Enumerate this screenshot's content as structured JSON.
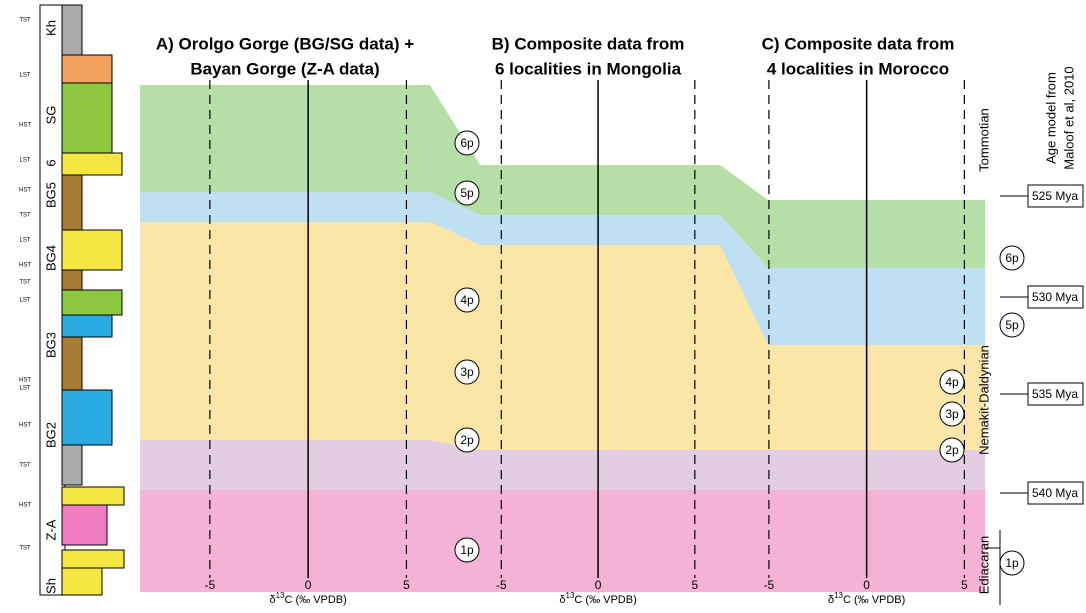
{
  "figure": {
    "panels": [
      {
        "title": [
          "A) Orolgo Gorge (BG/SG data) +",
          "Bayan Gorge (Z-A data)"
        ],
        "xlim": [
          -8.3,
          6.2
        ],
        "xticks": [
          -5,
          0,
          5
        ],
        "zones": [
          "6p",
          "5p",
          "4p",
          "3p",
          "2p",
          "1p"
        ]
      },
      {
        "title": [
          "B) Composite data from",
          "6 localities in Mongolia"
        ],
        "xlim": [
          -6.1,
          6.3
        ],
        "xticks": [
          -5,
          0,
          5
        ],
        "zones": []
      },
      {
        "title": [
          "C) Composite data from",
          "4 localities in Morocco"
        ],
        "xlim": [
          -5.2,
          5.8
        ],
        "xticks": [
          -5,
          0,
          5
        ],
        "zones": [
          "6p",
          "5p",
          "4p",
          "3p",
          "2p",
          "1p"
        ]
      }
    ],
    "xlabel": {
      "symbol": "δ",
      "sup": "13",
      "rest": "C (‰ VPDB)"
    },
    "age_model": {
      "title": [
        "Age model from",
        "Maloof et al, 2010"
      ],
      "ages": [
        "525 Mya",
        "530 Mya",
        "535 Mya",
        "540 Mya"
      ]
    },
    "stages": [
      "Tommotian",
      "Nemakit-Daldynian",
      "Ediacaran"
    ],
    "strat_units": [
      "Kh",
      "SG",
      "6",
      "BG5",
      "BG4",
      "BG3",
      "BG2",
      "Z-A",
      "Sh"
    ],
    "tracts": [
      "TST",
      "LST",
      "HST",
      "LST",
      "HST",
      "TST",
      "LST",
      "HST",
      "TST",
      "LST",
      "HST",
      "LST",
      "HST",
      "TST",
      "HST",
      "TST"
    ]
  }
}
